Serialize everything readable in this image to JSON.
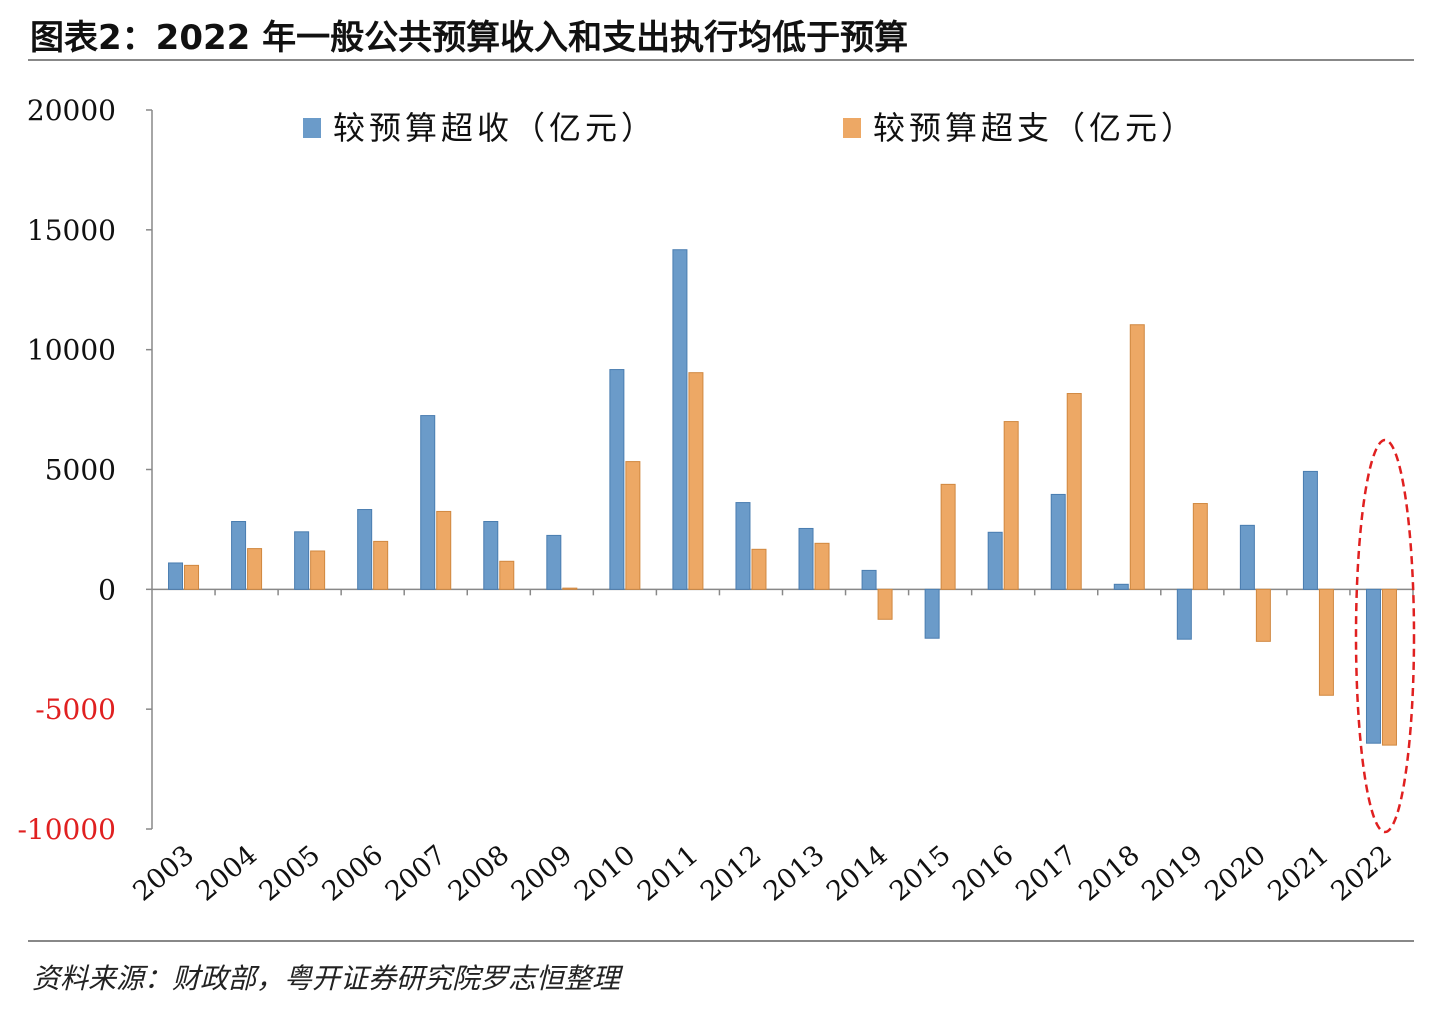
{
  "title": "图表2：2022 年一般公共预算收入和支出执行均低于预算",
  "source": "资料来源：财政部，粤开证券研究院罗志恒整理",
  "chart_data": {
    "type": "bar",
    "title": "图表2：2022 年一般公共预算收入和支出执行均低于预算",
    "xlabel": "",
    "ylabel": "",
    "ylim": [
      -10000,
      20000
    ],
    "yticks": [
      "20000",
      "15000",
      "10000",
      "5000",
      "0",
      "-5000",
      "-10000"
    ],
    "ytick_values": [
      20000,
      15000,
      10000,
      5000,
      0,
      -5000,
      -10000
    ],
    "legend_position": "top",
    "grid": false,
    "categories": [
      "2003",
      "2004",
      "2005",
      "2006",
      "2007",
      "2008",
      "2009",
      "2010",
      "2011",
      "2012",
      "2013",
      "2014",
      "2015",
      "2016",
      "2017",
      "2018",
      "2019",
      "2020",
      "2021",
      "2022"
    ],
    "series": [
      {
        "name": "较预算超收（亿元）",
        "color": "#6b9bc9",
        "values": [
          1100,
          2830,
          2400,
          3330,
          7250,
          2830,
          2250,
          9170,
          14170,
          3620,
          2540,
          790,
          -2040,
          2380,
          3960,
          210,
          -2080,
          2670,
          4920,
          -6420
        ]
      },
      {
        "name": "较预算超支（亿元）",
        "color": "#eda865",
        "values": [
          1000,
          1700,
          1600,
          2000,
          3250,
          1170,
          50,
          5330,
          9040,
          1670,
          1920,
          -1250,
          4380,
          7000,
          8170,
          11040,
          3580,
          -2170,
          -4420,
          -6500
        ]
      }
    ],
    "annotations": [
      "red dashed ellipse highlighting 2022"
    ],
    "colors": {
      "negative_tick": "#e02020",
      "highlight": "#e02020"
    }
  }
}
